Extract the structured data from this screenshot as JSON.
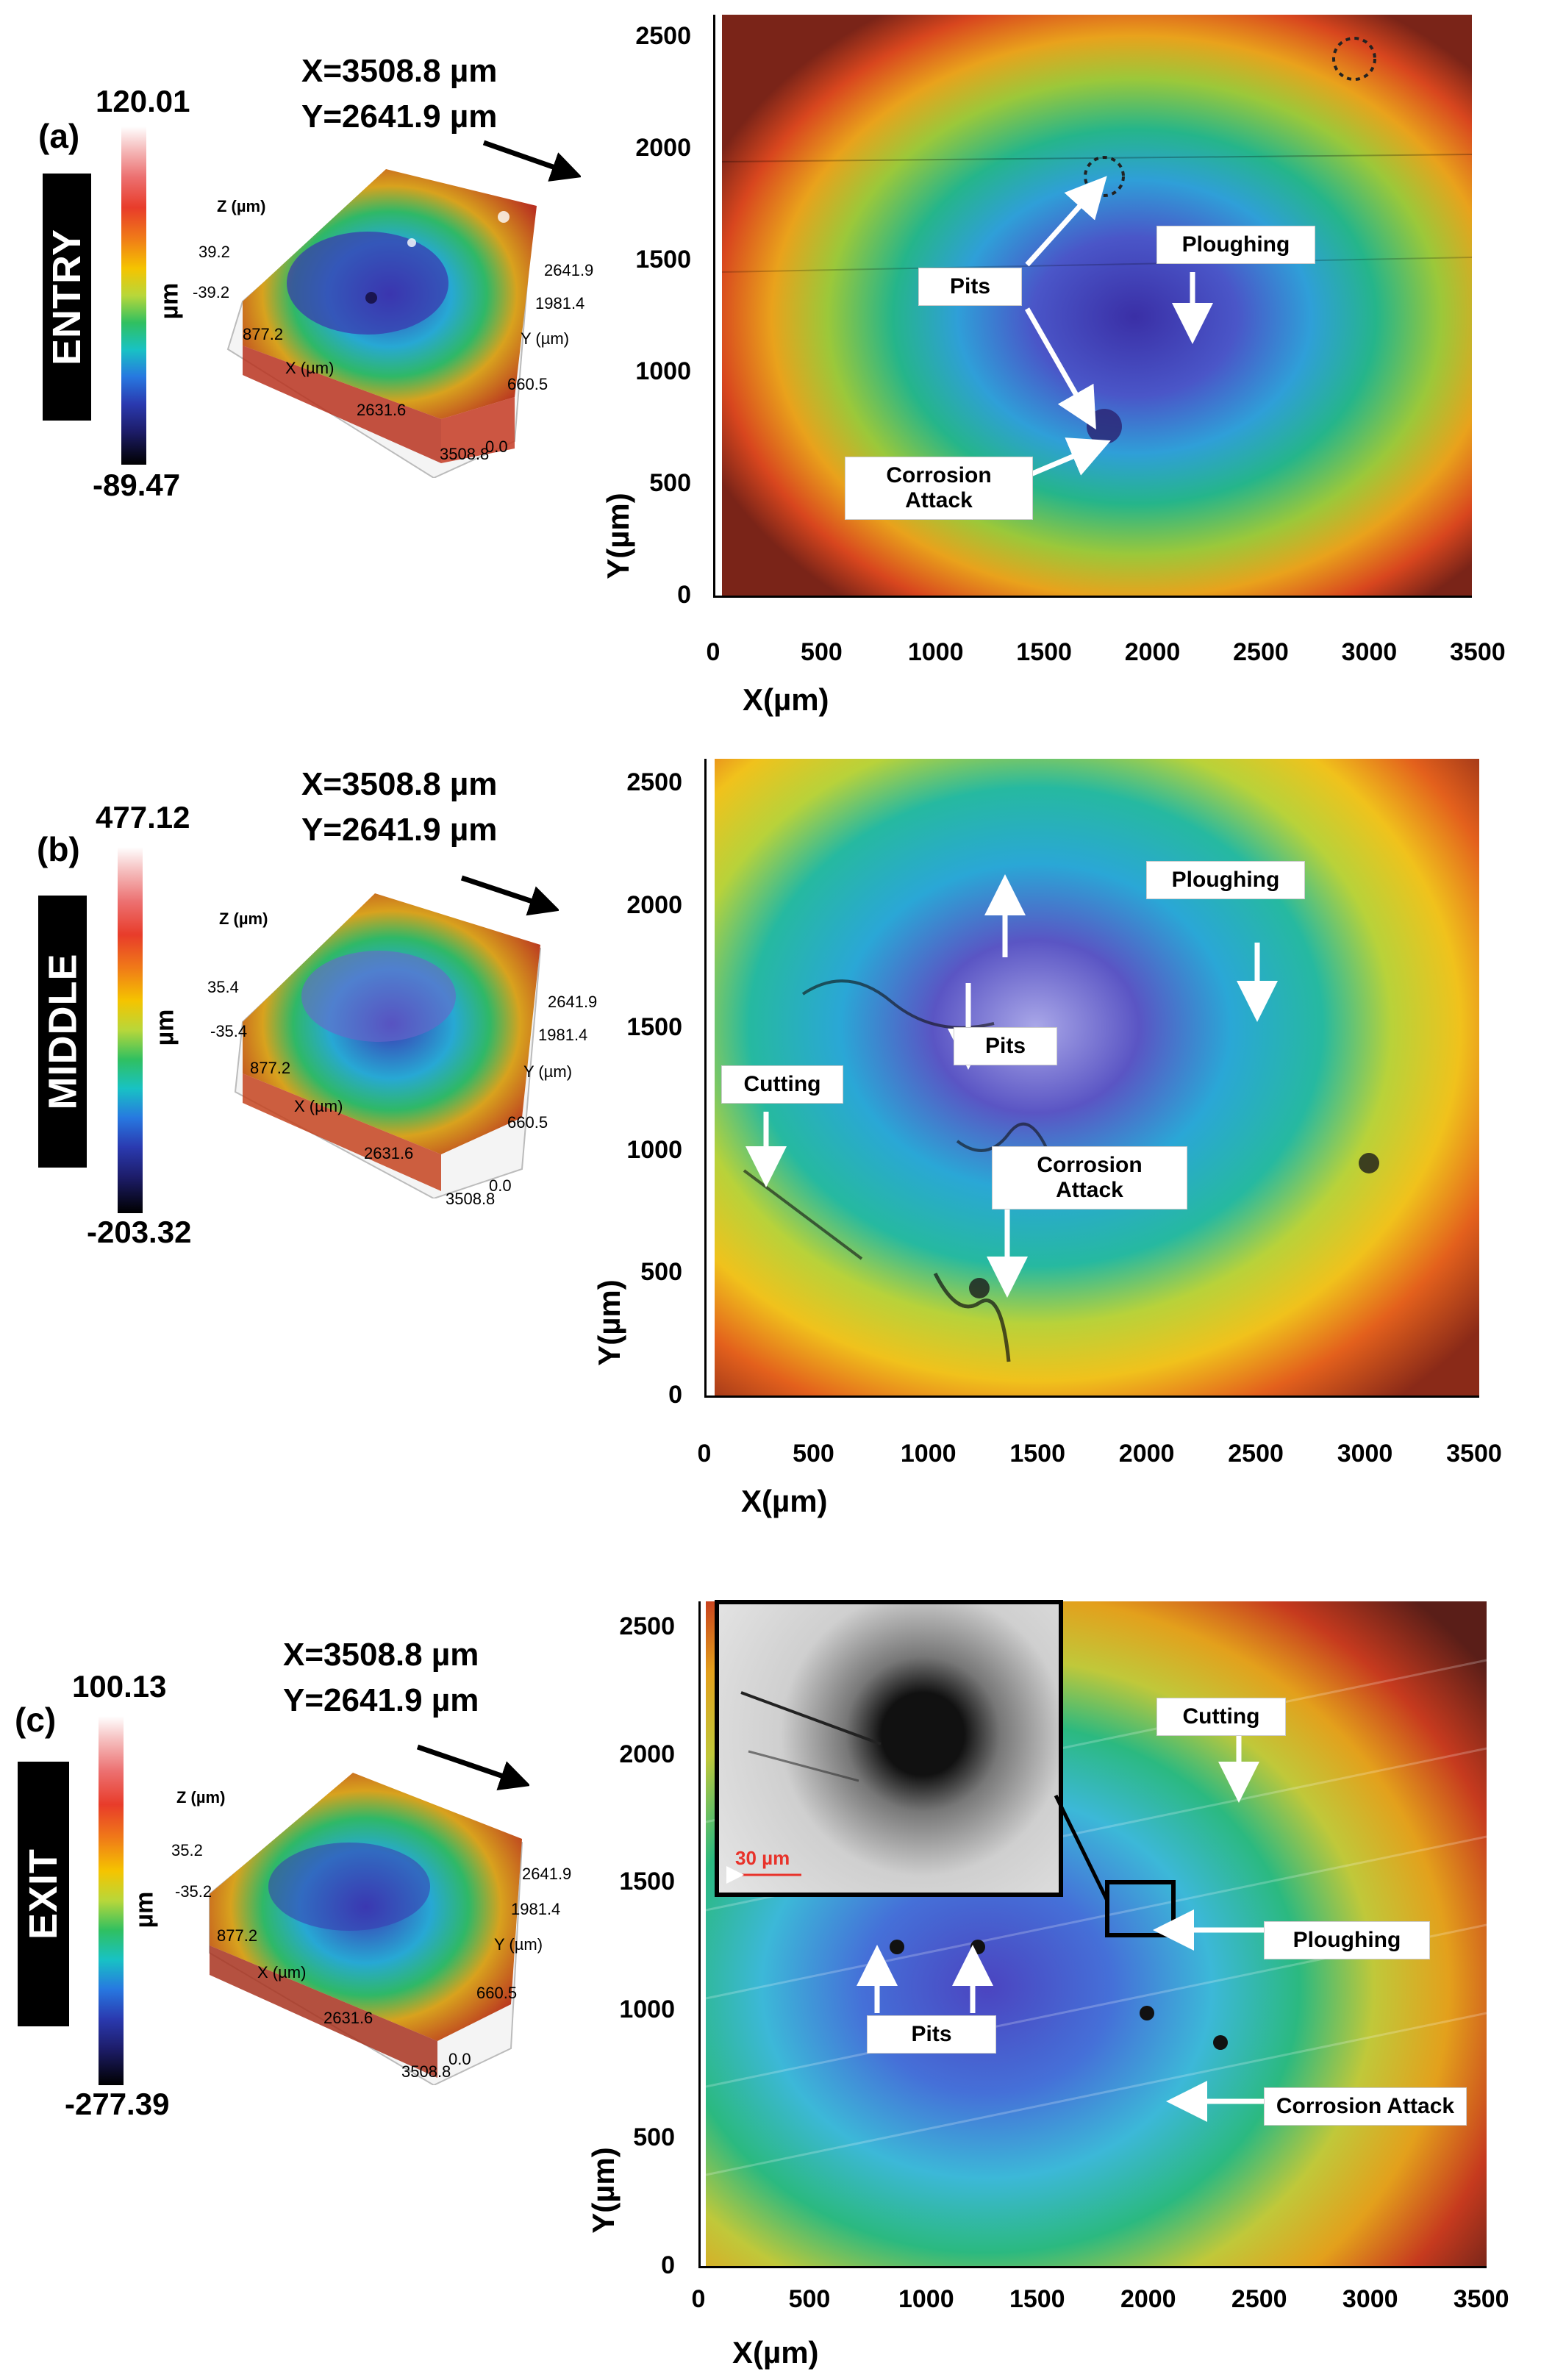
{
  "panels": [
    {
      "letter": "(a)",
      "section": "ENTRY",
      "colorbar": {
        "max": "120.01",
        "min": "-89.47",
        "unit": "µm"
      },
      "coords": {
        "x": "X=3508.8 µm",
        "y": "Y=2641.9 µm"
      },
      "surface3d": {
        "z_label": "Z (µm)",
        "z_hi": "39.2",
        "z_lo": "-39.2",
        "x_label": "X (µm)",
        "x_t1": "877.2",
        "x_t2": "2631.6",
        "x_t3": "3508.8",
        "y_label": "Y (µm)",
        "y_t1": "2641.9",
        "y_t2": "1981.4",
        "y_t3": "660.5",
        "y_t4": "0.0"
      },
      "annotations": {
        "pits": "Pits",
        "ploughing": "Ploughing",
        "corrosion": "Corrosion Attack"
      }
    },
    {
      "letter": "(b)",
      "section": "MIDDLE",
      "colorbar": {
        "max": "477.12",
        "min": "-203.32",
        "unit": "µm"
      },
      "coords": {
        "x": "X=3508.8 µm",
        "y": "Y=2641.9 µm"
      },
      "surface3d": {
        "z_label": "Z (µm)",
        "z_hi": "35.4",
        "z_lo": "-35.4",
        "x_label": "X (µm)",
        "x_t1": "877.2",
        "x_t2": "2631.6",
        "x_t3": "3508.8",
        "y_label": "Y (µm)",
        "y_t1": "2641.9",
        "y_t2": "1981.4",
        "y_t3": "660.5",
        "y_t4": "0.0"
      },
      "annotations": {
        "pits": "Pits",
        "ploughing": "Ploughing",
        "corrosion": "Corrosion Attack",
        "cutting": "Cutting"
      }
    },
    {
      "letter": "(c)",
      "section": "EXIT",
      "colorbar": {
        "max": "100.13",
        "min": "-277.39",
        "unit": "µm"
      },
      "coords": {
        "x": "X=3508.8 µm",
        "y": "Y=2641.9 µm"
      },
      "surface3d": {
        "z_label": "Z (µm)",
        "z_hi": "35.2",
        "z_lo": "-35.2",
        "x_label": "X (µm)",
        "x_t1": "877.2",
        "x_t2": "2631.6",
        "x_t3": "3508.8",
        "y_label": "Y (µm)",
        "y_t1": "2641.9",
        "y_t2": "1981.4",
        "y_t3": "660.5",
        "y_t4": "0.0"
      },
      "annotations": {
        "pits": "Pits",
        "ploughing": "Ploughing",
        "corrosion": "Corrosion Attack",
        "cutting": "Cutting"
      },
      "inset_scale": "30 µm"
    }
  ],
  "axes": {
    "xlabel": "X(µm)",
    "ylabel": "Y(µm)",
    "xticks": [
      "0",
      "500",
      "1000",
      "1500",
      "2000",
      "2500",
      "3000",
      "3500"
    ],
    "yticks": [
      "0",
      "500",
      "1000",
      "1500",
      "2000",
      "2500"
    ]
  },
  "colors": {
    "accent_red": "#e8322a",
    "arrow_white": "#ffffff"
  }
}
